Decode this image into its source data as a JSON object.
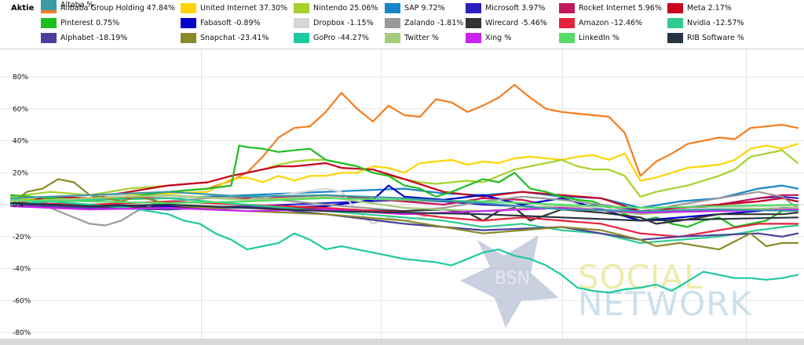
{
  "legend": {
    "title": "Aktie",
    "items": [
      {
        "name": "Alibaba Group Holding",
        "value": "47.84%",
        "color": "#f47d20"
      },
      {
        "name": "United Internet",
        "value": "37.30%",
        "color": "#ffd400"
      },
      {
        "name": "Nintendo",
        "value": "25.06%",
        "color": "#a6d12b"
      },
      {
        "name": "SAP",
        "value": "9.72%",
        "color": "#1686c8"
      },
      {
        "name": "Microsoft",
        "value": "3.97%",
        "color": "#2b1ec3"
      },
      {
        "name": "Rocket Internet",
        "value": "5.96%",
        "color": "#c2185b"
      },
      {
        "name": "Meta",
        "value": "2.17%",
        "color": "#c8001e"
      },
      {
        "name": "Pinterest",
        "value": "0.75%",
        "color": "#1fbe1f"
      },
      {
        "name": "Fabasoft",
        "value": "-0.89%",
        "color": "#0000c8"
      },
      {
        "name": "Dropbox",
        "value": "-1.15%",
        "color": "#d6d6d6"
      },
      {
        "name": "Zalando",
        "value": "-1.81%",
        "color": "#9a9a9a"
      },
      {
        "name": "Wirecard",
        "value": "-5.46%",
        "color": "#333333"
      },
      {
        "name": "Amazon",
        "value": "-12.46%",
        "color": "#e6233a"
      },
      {
        "name": "Nvidia",
        "value": "-12.57%",
        "color": "#2ecc8f"
      },
      {
        "name": "Alphabet",
        "value": "-18.19%",
        "color": "#4a3f9a"
      },
      {
        "name": "Snapchat",
        "value": "-23.41%",
        "color": "#8a8a2a"
      },
      {
        "name": "GoPro",
        "value": "-44.27%",
        "color": "#1fc9a0"
      },
      {
        "name": "Twitter",
        "value": "%",
        "color": "#a5cc7a"
      },
      {
        "name": "Xing",
        "value": "%",
        "color": "#cc22ee"
      },
      {
        "name": "LinkedIn",
        "value": "%",
        "color": "#55dd66"
      },
      {
        "name": "RIB Software",
        "value": "%",
        "color": "#2a3344"
      },
      {
        "name": "Altaba",
        "value": "%",
        "color": "#3a9aa6"
      }
    ]
  },
  "watermark": {
    "line1": "SOCIAL",
    "line2": "NETWORK",
    "star_text": "BSN"
  },
  "chart_data": {
    "type": "line",
    "yticks": [
      "80%",
      "60%",
      "40%",
      "20%",
      "0%",
      "-20%",
      "-40%",
      "-60%",
      "-80%"
    ],
    "ylim": [
      -80,
      80
    ],
    "xlim": [
      0,
      100
    ],
    "grid": true,
    "series": [
      {
        "name": "Alibaba Group Holding",
        "color": "#f47d20",
        "x": [
          0,
          5,
          10,
          15,
          20,
          25,
          28,
          30,
          32,
          34,
          36,
          38,
          40,
          42,
          43,
          44,
          46,
          48,
          50,
          52,
          54,
          56,
          58,
          60,
          62,
          64,
          66,
          68,
          70,
          72,
          74,
          76,
          78,
          80,
          82,
          84,
          86,
          88,
          90,
          92,
          94,
          96,
          98,
          100
        ],
        "values": [
          2,
          4,
          2,
          5,
          8,
          10,
          15,
          20,
          30,
          42,
          48,
          49,
          58,
          70,
          65,
          60,
          52,
          62,
          56,
          55,
          66,
          64,
          58,
          62,
          67,
          75,
          67,
          60,
          58,
          57,
          56,
          55,
          45,
          18,
          27,
          32,
          38,
          40,
          42,
          41,
          48,
          49,
          50,
          48
        ]
      },
      {
        "name": "United Internet",
        "color": "#ffd400",
        "x": [
          0,
          5,
          10,
          15,
          20,
          25,
          28,
          30,
          32,
          34,
          36,
          38,
          40,
          42,
          44,
          46,
          48,
          50,
          52,
          54,
          56,
          58,
          60,
          62,
          64,
          66,
          68,
          70,
          72,
          74,
          76,
          78,
          80,
          82,
          84,
          86,
          88,
          90,
          92,
          94,
          96,
          98,
          100
        ],
        "values": [
          3,
          5,
          4,
          6,
          7,
          8,
          16,
          17,
          14,
          18,
          15,
          18,
          18,
          20,
          20,
          24,
          23,
          20,
          26,
          27,
          28,
          25,
          27,
          26,
          29,
          30,
          29,
          28,
          30,
          31,
          28,
          32,
          15,
          17,
          20,
          23,
          24,
          25,
          28,
          35,
          37,
          35,
          38
        ]
      },
      {
        "name": "Nintendo",
        "color": "#a6d12b",
        "x": [
          0,
          5,
          10,
          15,
          20,
          25,
          28,
          30,
          32,
          34,
          36,
          38,
          40,
          42,
          44,
          46,
          48,
          50,
          52,
          54,
          56,
          58,
          60,
          62,
          64,
          66,
          68,
          70,
          72,
          74,
          76,
          78,
          80,
          82,
          84,
          86,
          88,
          90,
          92,
          94,
          96,
          98,
          100
        ],
        "values": [
          5,
          8,
          6,
          10,
          12,
          14,
          18,
          20,
          22,
          25,
          27,
          28,
          28,
          26,
          24,
          20,
          18,
          16,
          14,
          13,
          14,
          15,
          14,
          18,
          22,
          24,
          26,
          28,
          24,
          22,
          22,
          18,
          5,
          8,
          10,
          12,
          15,
          18,
          22,
          30,
          32,
          34,
          26
        ]
      },
      {
        "name": "SAP",
        "color": "#1686c8",
        "x": [
          0,
          10,
          20,
          30,
          40,
          50,
          55,
          60,
          65,
          70,
          75,
          80,
          85,
          90,
          95,
          98,
          100
        ],
        "values": [
          2,
          3,
          4,
          6,
          8,
          10,
          7,
          6,
          8,
          5,
          4,
          -2,
          2,
          4,
          10,
          12,
          10
        ]
      },
      {
        "name": "Microsoft",
        "color": "#2b1ec3",
        "x": [
          0,
          10,
          20,
          30,
          40,
          50,
          55,
          60,
          65,
          70,
          75,
          80,
          85,
          90,
          95,
          98,
          100
        ],
        "values": [
          0,
          -2,
          -3,
          -1,
          1,
          3,
          2,
          0,
          -1,
          -2,
          0,
          -4,
          -2,
          0,
          4,
          5,
          4
        ]
      },
      {
        "name": "Rocket Internet",
        "color": "#c2185b",
        "x": [
          0,
          10,
          20,
          30,
          40,
          50,
          55,
          60,
          65,
          70,
          75,
          80,
          85,
          90,
          95,
          98,
          100
        ],
        "values": [
          2,
          3,
          5,
          4,
          6,
          2,
          0,
          4,
          3,
          -2,
          -3,
          -6,
          -4,
          0,
          4,
          6,
          6
        ]
      },
      {
        "name": "Meta",
        "color": "#c8001e",
        "x": [
          0,
          5,
          10,
          15,
          20,
          25,
          28,
          30,
          32,
          34,
          36,
          38,
          40,
          42,
          46,
          50,
          55,
          60,
          65,
          70,
          75,
          80,
          85,
          90,
          95,
          98,
          100
        ],
        "values": [
          0,
          5,
          4,
          8,
          12,
          14,
          18,
          20,
          22,
          24,
          24,
          25,
          26,
          23,
          22,
          16,
          8,
          5,
          8,
          6,
          4,
          -4,
          -2,
          0,
          2,
          4,
          2
        ]
      },
      {
        "name": "Pinterest",
        "color": "#1fbe1f",
        "x": [
          0,
          5,
          10,
          15,
          20,
          25,
          28,
          29,
          30,
          32,
          34,
          36,
          38,
          40,
          42,
          44,
          46,
          48,
          50,
          52,
          54,
          56,
          58,
          60,
          62,
          64,
          66,
          68,
          70,
          72,
          74,
          76,
          78,
          80,
          82,
          84,
          86,
          88,
          90,
          92,
          94,
          96,
          98,
          100
        ],
        "values": [
          6,
          4,
          3,
          5,
          8,
          10,
          12,
          37,
          36,
          35,
          33,
          34,
          35,
          28,
          26,
          24,
          20,
          18,
          12,
          10,
          5,
          8,
          12,
          16,
          14,
          20,
          10,
          8,
          5,
          3,
          2,
          -2,
          -6,
          -10,
          -8,
          -12,
          -14,
          -10,
          -8,
          -14,
          -12,
          -10,
          -4,
          0
        ]
      },
      {
        "name": "Fabasoft",
        "color": "#0000c8",
        "x": [
          0,
          10,
          20,
          30,
          40,
          46,
          48,
          50,
          55,
          60,
          65,
          70,
          75,
          80,
          85,
          90,
          95,
          98,
          100
        ],
        "values": [
          1,
          0,
          -1,
          -2,
          -1,
          3,
          12,
          5,
          3,
          6,
          0,
          4,
          -3,
          -10,
          -8,
          -6,
          -4,
          -2,
          0
        ]
      },
      {
        "name": "Dropbox",
        "color": "#d6d6d6",
        "x": [
          0,
          10,
          20,
          30,
          40,
          42,
          44,
          46,
          48,
          50,
          55,
          60,
          65,
          70,
          75,
          80,
          85,
          90,
          95,
          98,
          100
        ],
        "values": [
          4,
          6,
          5,
          3,
          10,
          8,
          -4,
          -12,
          -8,
          -10,
          -5,
          -4,
          -2,
          0,
          -2,
          -5,
          -3,
          -2,
          -1,
          -1,
          -1
        ]
      },
      {
        "name": "Zalando",
        "color": "#9a9a9a",
        "x": [
          0,
          5,
          10,
          12,
          14,
          16,
          18,
          20,
          25,
          30,
          40,
          50,
          55,
          60,
          65,
          70,
          75,
          80,
          85,
          90,
          95,
          98,
          100
        ],
        "values": [
          0,
          -2,
          -12,
          -13,
          -10,
          -4,
          0,
          2,
          4,
          5,
          0,
          -4,
          -2,
          2,
          5,
          3,
          0,
          -5,
          0,
          4,
          8,
          5,
          -2
        ]
      },
      {
        "name": "Wirecard",
        "color": "#333333",
        "x": [
          0,
          10,
          20,
          30,
          40,
          50,
          55,
          58,
          60,
          62,
          64,
          66,
          70,
          75,
          80,
          82,
          85,
          90,
          95,
          98,
          100
        ],
        "values": [
          0,
          -1,
          -2,
          -1,
          -3,
          -4,
          -3,
          -5,
          -10,
          -4,
          -2,
          -10,
          -3,
          -5,
          -8,
          -12,
          -10,
          -6,
          -6,
          -6,
          -5
        ]
      },
      {
        "name": "Amazon",
        "color": "#e6233a",
        "x": [
          0,
          10,
          20,
          30,
          40,
          50,
          55,
          60,
          65,
          70,
          75,
          80,
          85,
          90,
          95,
          98,
          100
        ],
        "values": [
          1,
          0,
          2,
          0,
          -2,
          -5,
          -8,
          -10,
          -8,
          -10,
          -12,
          -18,
          -20,
          -16,
          -12,
          -12,
          -12
        ]
      },
      {
        "name": "Nvidia",
        "color": "#2ecc8f",
        "x": [
          0,
          10,
          20,
          30,
          40,
          50,
          55,
          60,
          65,
          70,
          75,
          80,
          85,
          90,
          95,
          98,
          100
        ],
        "values": [
          2,
          3,
          4,
          0,
          -4,
          -8,
          -10,
          -14,
          -12,
          -16,
          -18,
          -24,
          -22,
          -20,
          -16,
          -14,
          -13
        ]
      },
      {
        "name": "Alphabet",
        "color": "#4a3f9a",
        "x": [
          0,
          10,
          20,
          30,
          40,
          50,
          55,
          60,
          65,
          70,
          75,
          80,
          85,
          90,
          95,
          98,
          100
        ],
        "values": [
          0,
          -2,
          -3,
          -1,
          -6,
          -12,
          -14,
          -16,
          -15,
          -14,
          -18,
          -22,
          -20,
          -19,
          -18,
          -20,
          -18
        ]
      },
      {
        "name": "Snapchat",
        "color": "#8a8a2a",
        "x": [
          0,
          2,
          4,
          6,
          8,
          10,
          12,
          14,
          16,
          18,
          20,
          25,
          30,
          40,
          50,
          55,
          60,
          65,
          70,
          75,
          80,
          82,
          85,
          90,
          94,
          96,
          98,
          100
        ],
        "values": [
          0,
          8,
          10,
          16,
          14,
          6,
          4,
          2,
          5,
          3,
          0,
          -2,
          -4,
          -6,
          -10,
          -14,
          -18,
          -16,
          -14,
          -16,
          -22,
          -26,
          -24,
          -28,
          -18,
          -26,
          -24,
          -24
        ]
      },
      {
        "name": "GoPro",
        "color": "#1fc9a0",
        "x": [
          0,
          5,
          10,
          15,
          20,
          22,
          24,
          26,
          28,
          30,
          32,
          34,
          36,
          38,
          40,
          42,
          44,
          46,
          48,
          50,
          52,
          54,
          56,
          58,
          60,
          62,
          64,
          66,
          68,
          70,
          72,
          74,
          76,
          78,
          80,
          82,
          84,
          86,
          88,
          90,
          92,
          94,
          96,
          98,
          100
        ],
        "values": [
          0,
          2,
          0,
          -2,
          -6,
          -10,
          -12,
          -18,
          -22,
          -28,
          -26,
          -24,
          -18,
          -22,
          -28,
          -26,
          -28,
          -30,
          -32,
          -34,
          -35,
          -36,
          -38,
          -34,
          -30,
          -28,
          -32,
          -34,
          -38,
          -44,
          -52,
          -54,
          -55,
          -53,
          -52,
          -50,
          -54,
          -48,
          -42,
          -44,
          -46,
          -46,
          -47,
          -46,
          -44
        ]
      },
      {
        "name": "Twitter",
        "color": "#a5cc7a",
        "x": [
          0,
          10,
          20,
          30,
          40,
          50,
          60,
          70,
          80,
          90,
          100
        ],
        "values": [
          2,
          4,
          6,
          3,
          5,
          -2,
          -4,
          -1,
          -6,
          -3,
          -2
        ]
      },
      {
        "name": "Xing",
        "color": "#cc22ee",
        "x": [
          0,
          10,
          20,
          30,
          40,
          50,
          60,
          70,
          80,
          90,
          100
        ],
        "values": [
          -1,
          -3,
          -2,
          -4,
          -3,
          -6,
          -4,
          -2,
          -5,
          -4,
          -3
        ]
      },
      {
        "name": "LinkedIn",
        "color": "#55dd66",
        "x": [
          0,
          10,
          20,
          30,
          40,
          50,
          60,
          70,
          80,
          90,
          100
        ],
        "values": [
          3,
          2,
          1,
          2,
          4,
          3,
          2,
          0,
          -2,
          -1,
          0
        ]
      },
      {
        "name": "RIB Software",
        "color": "#2a3344",
        "x": [
          0,
          10,
          20,
          30,
          40,
          50,
          60,
          70,
          80,
          90,
          100
        ],
        "values": [
          1,
          -1,
          0,
          -2,
          -4,
          -5,
          -6,
          -8,
          -10,
          -9,
          -8
        ]
      },
      {
        "name": "Altaba",
        "color": "#3a9aa6",
        "x": [
          0,
          10,
          20,
          30,
          40,
          50,
          60,
          70,
          80,
          90,
          100
        ],
        "values": [
          4,
          6,
          8,
          5,
          6,
          4,
          1,
          -3,
          -4,
          -3,
          -4
        ]
      }
    ]
  }
}
